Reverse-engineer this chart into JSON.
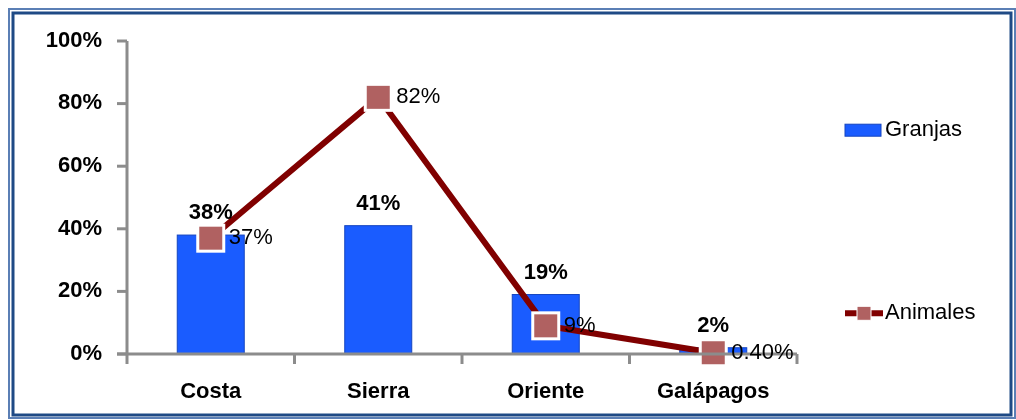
{
  "chart_data": {
    "type": "bar",
    "categories": [
      "Costa",
      "Sierra",
      "Oriente",
      "Galápagos"
    ],
    "ylim": [
      0,
      100
    ],
    "yticks": [
      {
        "value": 0,
        "label": "0%"
      },
      {
        "value": 20,
        "label": "20%"
      },
      {
        "value": 40,
        "label": "40%"
      },
      {
        "value": 60,
        "label": "60%"
      },
      {
        "value": 80,
        "label": "80%"
      },
      {
        "value": 100,
        "label": "100%"
      }
    ],
    "legend": "right",
    "marker": "square",
    "series": [
      {
        "name": "Granjas",
        "color": "#1a5cff",
        "values": [
          38,
          41,
          19,
          2
        ],
        "value_labels": [
          "38%",
          "41%",
          "19%",
          "2%"
        ]
      },
      {
        "name": "Animales",
        "type": "line",
        "color": "#800000",
        "values": [
          37,
          82,
          9,
          0.4
        ],
        "value_labels": [
          "37%",
          "82%",
          "9%",
          "0.40%"
        ]
      }
    ]
  }
}
